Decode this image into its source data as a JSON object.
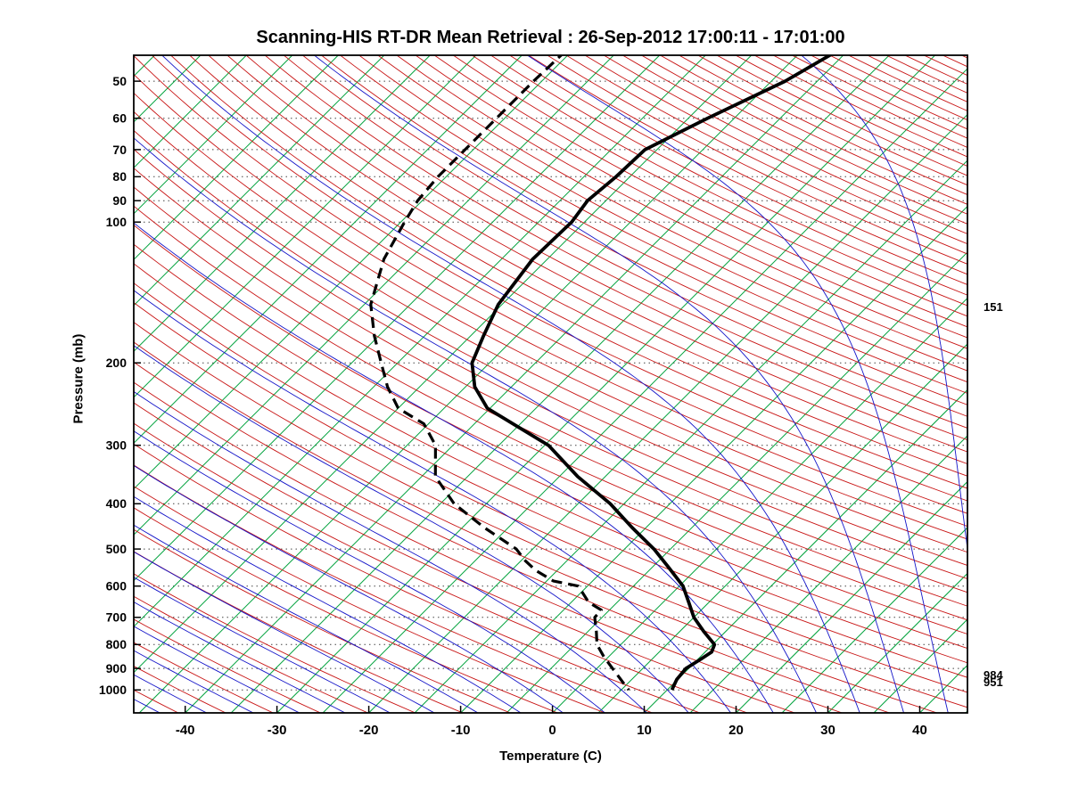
{
  "chart_data": {
    "type": "line",
    "subtype": "skewt-logp",
    "title": "Scanning-HIS RT-DR Mean Retrieval : 26-Sep-2012 17:00:11 - 17:01:00",
    "xlabel": "Temperature (C)",
    "ylabel": "Pressure (mb)",
    "x_ticks": [
      -40,
      -30,
      -20,
      -10,
      0,
      10,
      20,
      30,
      40
    ],
    "y_ticks": [
      50,
      60,
      70,
      80,
      90,
      100,
      200,
      300,
      400,
      500,
      600,
      700,
      800,
      900,
      1000
    ],
    "xlim": [
      -45.6,
      45.2
    ],
    "plim": [
      44,
      1120
    ],
    "grid": {
      "style": "dotted",
      "color": "#444444"
    },
    "isotherms": {
      "color": "#00a23c",
      "t_min": -120,
      "t_max": 45,
      "step": 5
    },
    "dry_adiabats": {
      "color": "#c81414",
      "theta_min": 220,
      "theta_max": 610,
      "step": 5
    },
    "moist_adiabats": {
      "color": "#1414c8",
      "t_start_min": -60,
      "t_start_max": 45,
      "step": 5
    },
    "temperature_curve": {
      "name": "Temperature",
      "color": "#000000",
      "style": "solid",
      "points": [
        [
          43,
          -41.1
        ],
        [
          50,
          -43.5
        ],
        [
          60,
          -47.9
        ],
        [
          70,
          -51.3
        ],
        [
          80,
          -51.5
        ],
        [
          90,
          -52.0
        ],
        [
          100,
          -51.4
        ],
        [
          120,
          -51.6
        ],
        [
          150,
          -50.4
        ],
        [
          175,
          -48.6
        ],
        [
          200,
          -46.9
        ],
        [
          225,
          -44.0
        ],
        [
          250,
          -40.3
        ],
        [
          300,
          -29.6
        ],
        [
          350,
          -23.0
        ],
        [
          400,
          -16.5
        ],
        [
          450,
          -11.5
        ],
        [
          500,
          -6.8
        ],
        [
          550,
          -3.0
        ],
        [
          600,
          0.4
        ],
        [
          650,
          2.8
        ],
        [
          700,
          5.0
        ],
        [
          750,
          7.6
        ],
        [
          800,
          10.2
        ],
        [
          830,
          10.7
        ],
        [
          860,
          10.3
        ],
        [
          900,
          9.7
        ],
        [
          950,
          9.9
        ],
        [
          1000,
          10.5
        ]
      ]
    },
    "dewpoint_curve": {
      "name": "Dew point",
      "color": "#000000",
      "style": "dashed",
      "points": [
        [
          43,
          -70.7
        ],
        [
          50,
          -70.9
        ],
        [
          60,
          -70.9
        ],
        [
          70,
          -70.9
        ],
        [
          80,
          -70.9
        ],
        [
          90,
          -70.5
        ],
        [
          100,
          -69.6
        ],
        [
          120,
          -67.8
        ],
        [
          150,
          -64.3
        ],
        [
          175,
          -60.5
        ],
        [
          200,
          -56.8
        ],
        [
          225,
          -53.5
        ],
        [
          250,
          -50.0
        ],
        [
          270,
          -45.5
        ],
        [
          300,
          -41.9
        ],
        [
          350,
          -38.5
        ],
        [
          400,
          -33.5
        ],
        [
          450,
          -27.6
        ],
        [
          500,
          -21.8
        ],
        [
          530,
          -19.5
        ],
        [
          555,
          -17.4
        ],
        [
          585,
          -14.3
        ],
        [
          600,
          -11.0
        ],
        [
          650,
          -8.1
        ],
        [
          675,
          -5.9
        ],
        [
          700,
          -5.8
        ],
        [
          750,
          -4.1
        ],
        [
          800,
          -2.6
        ],
        [
          850,
          -0.5
        ],
        [
          900,
          1.7
        ],
        [
          950,
          3.8
        ],
        [
          1000,
          5.8
        ]
      ]
    },
    "right_labels": [
      {
        "text": "151",
        "p": 152
      },
      {
        "text": "984",
        "p": 930
      },
      {
        "text": "951",
        "p": 962
      }
    ]
  }
}
